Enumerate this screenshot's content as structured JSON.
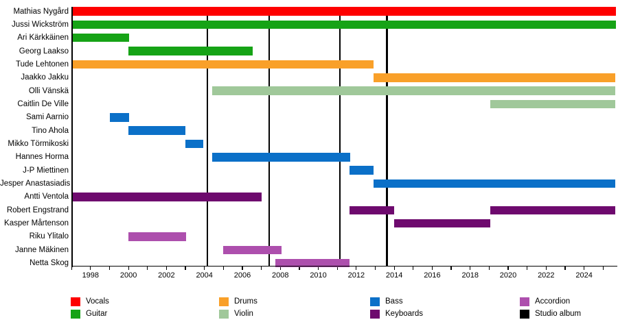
{
  "legend": {
    "items": [
      {
        "label": "Vocals",
        "color": "#fe0000"
      },
      {
        "label": "Guitar",
        "color": "#16a316"
      },
      {
        "label": "Drums",
        "color": "#f9a029"
      },
      {
        "label": "Violin",
        "color": "#a0c89a"
      },
      {
        "label": "Bass",
        "color": "#0b70c8"
      },
      {
        "label": "Keyboards",
        "color": "#6e0a6e"
      },
      {
        "label": "Accordion",
        "color": "#ad4fad"
      },
      {
        "label": "Studio album",
        "color": "#000000"
      }
    ]
  },
  "chart_data": {
    "type": "bar",
    "subtype": "gantt-member-timeline",
    "title": "",
    "x_axis": {
      "min": 1997.03,
      "max": 2025.66,
      "tick_start": 1997,
      "tick_end": 2025,
      "tick_step": 1,
      "label_start": 1998,
      "label_end": 2024,
      "label_step": 2
    },
    "album_release_lines": [
      2004.16,
      2007.41,
      2011.13,
      2013.61
    ],
    "members": [
      {
        "name": "Mathias Nygård",
        "segments": [
          {
            "role": "Vocals",
            "start": 1997.03,
            "end": 2025.66
          }
        ]
      },
      {
        "name": "Jussi Wickström",
        "segments": [
          {
            "role": "Guitar",
            "start": 1997.03,
            "end": 2025.66
          }
        ]
      },
      {
        "name": "Ari Kärkkäinen",
        "segments": [
          {
            "role": "Guitar",
            "start": 1997.03,
            "end": 2000.05
          }
        ]
      },
      {
        "name": "Georg Laakso",
        "segments": [
          {
            "role": "Guitar",
            "start": 2000.0,
            "end": 2006.55
          }
        ]
      },
      {
        "name": "Tude Lehtonen",
        "segments": [
          {
            "role": "Drums",
            "start": 1997.03,
            "end": 2012.9
          }
        ]
      },
      {
        "name": "Jaakko Jakku",
        "segments": [
          {
            "role": "Drums",
            "start": 2012.9,
            "end": 2025.66
          }
        ]
      },
      {
        "name": "Olli Vänskä",
        "segments": [
          {
            "role": "Violin",
            "start": 2004.41,
            "end": 2025.66
          }
        ]
      },
      {
        "name": "Caitlin De Ville",
        "segments": [
          {
            "role": "Violin",
            "start": 2019.05,
            "end": 2025.66
          }
        ]
      },
      {
        "name": "Sami Aarnio",
        "segments": [
          {
            "role": "Bass",
            "start": 1999.02,
            "end": 2000.05
          }
        ]
      },
      {
        "name": "Tino Ahola",
        "segments": [
          {
            "role": "Bass",
            "start": 2000.0,
            "end": 2003.0
          }
        ]
      },
      {
        "name": "Mikko Törmikoski",
        "segments": [
          {
            "role": "Bass",
            "start": 2003.0,
            "end": 2003.93
          }
        ]
      },
      {
        "name": "Hannes Horma",
        "segments": [
          {
            "role": "Bass",
            "start": 2004.41,
            "end": 2011.67
          }
        ]
      },
      {
        "name": "J-P Miettinen",
        "segments": [
          {
            "role": "Bass",
            "start": 2011.64,
            "end": 2012.9
          }
        ]
      },
      {
        "name": "Jesper Anastasiadis",
        "segments": [
          {
            "role": "Bass",
            "start": 2012.9,
            "end": 2025.66
          }
        ]
      },
      {
        "name": "Antti Ventola",
        "segments": [
          {
            "role": "Keyboards",
            "start": 1997.03,
            "end": 2007.01
          }
        ]
      },
      {
        "name": "Robert Engstrand",
        "segments": [
          {
            "role": "Keyboards",
            "start": 2011.64,
            "end": 2014.0
          },
          {
            "role": "Keyboards",
            "start": 2019.06,
            "end": 2025.66
          }
        ]
      },
      {
        "name": "Kasper Mårtenson",
        "segments": [
          {
            "role": "Keyboards",
            "start": 2014.0,
            "end": 2019.06
          }
        ]
      },
      {
        "name": "Riku Ylitalo",
        "segments": [
          {
            "role": "Accordion",
            "start": 2000.0,
            "end": 2003.04
          }
        ]
      },
      {
        "name": "Janne Mäkinen",
        "segments": [
          {
            "role": "Accordion",
            "start": 2005.0,
            "end": 2008.06
          }
        ]
      },
      {
        "name": "Netta Skog",
        "segments": [
          {
            "role": "Accordion",
            "start": 2007.73,
            "end": 2011.64
          }
        ]
      }
    ]
  }
}
